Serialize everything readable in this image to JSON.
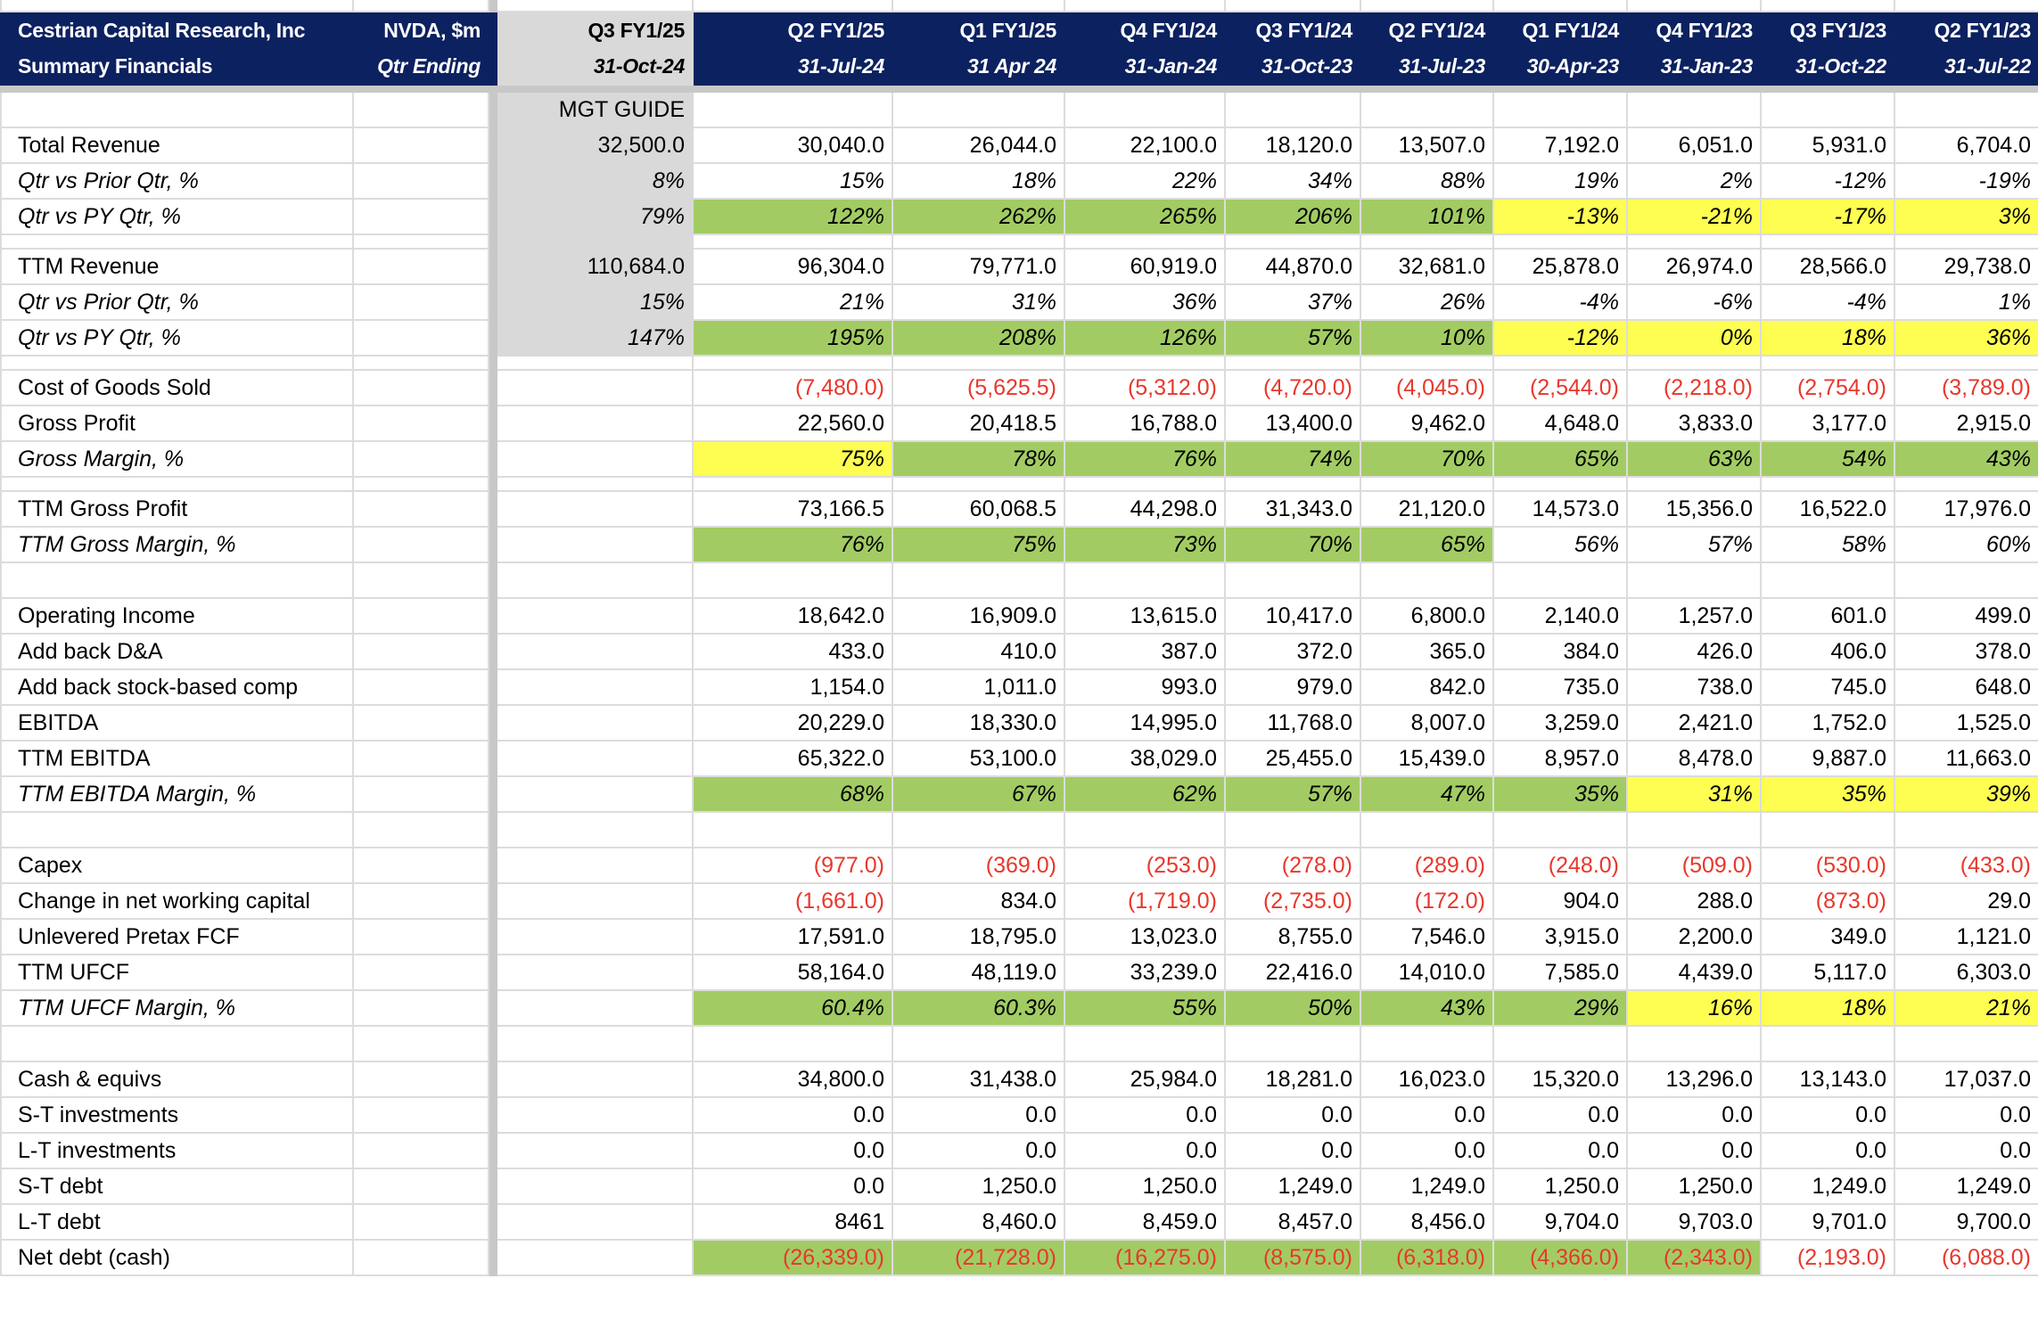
{
  "header": {
    "title_line1": "Cestrian Capital Research, Inc",
    "title_line2": "Summary Financials",
    "ticker_line1": "NVDA, $m",
    "ticker_line2": "Qtr Ending",
    "guide_quarter": "Q3 FY1/25",
    "guide_date": "31-Oct-24",
    "guide_label": "MGT GUIDE",
    "quarters": [
      {
        "q": "Q2 FY1/25",
        "d": "31-Jul-24"
      },
      {
        "q": "Q1 FY1/25",
        "d": "31 Apr 24"
      },
      {
        "q": "Q4 FY1/24",
        "d": "31-Jan-24"
      },
      {
        "q": "Q3 FY1/24",
        "d": "31-Oct-23"
      },
      {
        "q": "Q2 FY1/24",
        "d": "31-Jul-23"
      },
      {
        "q": "Q1 FY1/24",
        "d": "30-Apr-23"
      },
      {
        "q": "Q4 FY1/23",
        "d": "31-Jan-23"
      },
      {
        "q": "Q3 FY1/23",
        "d": "31-Oct-22"
      },
      {
        "q": "Q2 FY1/23",
        "d": "31-Jul-22"
      }
    ]
  },
  "colors": {
    "header_bg": "#0c2160",
    "green": "#a2cc63",
    "yellow": "#fdfd52",
    "negative": "#e8372c",
    "guide_bg": "#d9d9d9"
  },
  "rows": [
    {
      "type": "guide"
    },
    {
      "label": "Total Revenue",
      "guide": "32,500.0",
      "values": [
        "30,040.0",
        "26,044.0",
        "22,100.0",
        "18,120.0",
        "13,507.0",
        "7,192.0",
        "6,051.0",
        "5,931.0",
        "6,704.0"
      ]
    },
    {
      "label": "Qtr vs Prior Qtr, %",
      "italic": true,
      "guide": "8%",
      "values": [
        "15%",
        "18%",
        "22%",
        "34%",
        "88%",
        "19%",
        "2%",
        "-12%",
        "-19%"
      ]
    },
    {
      "label": "Qtr vs PY Qtr, %",
      "italic": true,
      "guide": "79%",
      "fill": "gggggyyyy",
      "values": [
        "122%",
        "262%",
        "265%",
        "206%",
        "101%",
        "-13%",
        "-21%",
        "-17%",
        "3%"
      ]
    },
    {
      "type": "blank-s",
      "gray": true
    },
    {
      "label": "TTM Revenue",
      "guide": "110,684.0",
      "values": [
        "96,304.0",
        "79,771.0",
        "60,919.0",
        "44,870.0",
        "32,681.0",
        "25,878.0",
        "26,974.0",
        "28,566.0",
        "29,738.0"
      ]
    },
    {
      "label": "Qtr vs Prior Qtr, %",
      "italic": true,
      "guide": "15%",
      "values": [
        "21%",
        "31%",
        "36%",
        "37%",
        "26%",
        "-4%",
        "-6%",
        "-4%",
        "1%"
      ]
    },
    {
      "label": "Qtr vs PY Qtr, %",
      "italic": true,
      "guide": "147%",
      "fill": "gggggyyyy",
      "values": [
        "195%",
        "208%",
        "126%",
        "57%",
        "10%",
        "-12%",
        "0%",
        "18%",
        "36%"
      ]
    },
    {
      "type": "blank-s"
    },
    {
      "label": "Cost of Goods Sold",
      "values": [
        "(7,480.0)",
        "(5,625.5)",
        "(5,312.0)",
        "(4,720.0)",
        "(4,045.0)",
        "(2,544.0)",
        "(2,218.0)",
        "(2,754.0)",
        "(3,789.0)"
      ]
    },
    {
      "label": "Gross Profit",
      "values": [
        "22,560.0",
        "20,418.5",
        "16,788.0",
        "13,400.0",
        "9,462.0",
        "4,648.0",
        "3,833.0",
        "3,177.0",
        "2,915.0"
      ]
    },
    {
      "label": "Gross Margin, %",
      "italic": true,
      "fill": "yggggggggy",
      "values": [
        "75%",
        "78%",
        "76%",
        "74%",
        "70%",
        "65%",
        "63%",
        "54%",
        "43%"
      ]
    },
    {
      "type": "blank-s"
    },
    {
      "label": "TTM Gross Profit",
      "values": [
        "73,166.5",
        "60,068.5",
        "44,298.0",
        "31,343.0",
        "21,120.0",
        "14,573.0",
        "15,356.0",
        "16,522.0",
        "17,976.0"
      ]
    },
    {
      "label": "TTM Gross Margin, %",
      "italic": true,
      "fill": "ggggg----",
      "values": [
        "76%",
        "75%",
        "73%",
        "70%",
        "65%",
        "56%",
        "57%",
        "58%",
        "60%"
      ]
    },
    {
      "type": "blank"
    },
    {
      "label": "Operating Income",
      "values": [
        "18,642.0",
        "16,909.0",
        "13,615.0",
        "10,417.0",
        "6,800.0",
        "2,140.0",
        "1,257.0",
        "601.0",
        "499.0"
      ]
    },
    {
      "label": "Add back D&A",
      "values": [
        "433.0",
        "410.0",
        "387.0",
        "372.0",
        "365.0",
        "384.0",
        "426.0",
        "406.0",
        "378.0"
      ]
    },
    {
      "label": "Add back stock-based comp",
      "values": [
        "1,154.0",
        "1,011.0",
        "993.0",
        "979.0",
        "842.0",
        "735.0",
        "738.0",
        "745.0",
        "648.0"
      ]
    },
    {
      "label": "EBITDA",
      "values": [
        "20,229.0",
        "18,330.0",
        "14,995.0",
        "11,768.0",
        "8,007.0",
        "3,259.0",
        "2,421.0",
        "1,752.0",
        "1,525.0"
      ]
    },
    {
      "label": "TTM EBITDA",
      "values": [
        "65,322.0",
        "53,100.0",
        "38,029.0",
        "25,455.0",
        "15,439.0",
        "8,957.0",
        "8,478.0",
        "9,887.0",
        "11,663.0"
      ]
    },
    {
      "label": "TTM EBITDA Margin, %",
      "italic": true,
      "fill": "ggggggyyy",
      "values": [
        "68%",
        "67%",
        "62%",
        "57%",
        "47%",
        "35%",
        "31%",
        "35%",
        "39%"
      ]
    },
    {
      "type": "blank"
    },
    {
      "label": "Capex",
      "values": [
        "(977.0)",
        "(369.0)",
        "(253.0)",
        "(278.0)",
        "(289.0)",
        "(248.0)",
        "(509.0)",
        "(530.0)",
        "(433.0)"
      ]
    },
    {
      "label": "Change in net working capital",
      "values": [
        "(1,661.0)",
        "834.0",
        "(1,719.0)",
        "(2,735.0)",
        "(172.0)",
        "904.0",
        "288.0",
        "(873.0)",
        "29.0"
      ]
    },
    {
      "label": "Unlevered Pretax FCF",
      "values": [
        "17,591.0",
        "18,795.0",
        "13,023.0",
        "8,755.0",
        "7,546.0",
        "3,915.0",
        "2,200.0",
        "349.0",
        "1,121.0"
      ]
    },
    {
      "label": "TTM UFCF",
      "values": [
        "58,164.0",
        "48,119.0",
        "33,239.0",
        "22,416.0",
        "14,010.0",
        "7,585.0",
        "4,439.0",
        "5,117.0",
        "6,303.0"
      ]
    },
    {
      "label": "TTM UFCF Margin, %",
      "italic": true,
      "fill": "ggggggyyy",
      "values": [
        "60.4%",
        "60.3%",
        "55%",
        "50%",
        "43%",
        "29%",
        "16%",
        "18%",
        "21%"
      ]
    },
    {
      "type": "blank"
    },
    {
      "label": "Cash & equivs",
      "values": [
        "34,800.0",
        "31,438.0",
        "25,984.0",
        "18,281.0",
        "16,023.0",
        "15,320.0",
        "13,296.0",
        "13,143.0",
        "17,037.0"
      ]
    },
    {
      "label": "S-T investments",
      "values": [
        "0.0",
        "0.0",
        "0.0",
        "0.0",
        "0.0",
        "0.0",
        "0.0",
        "0.0",
        "0.0"
      ]
    },
    {
      "label": "L-T investments",
      "values": [
        "0.0",
        "0.0",
        "0.0",
        "0.0",
        "0.0",
        "0.0",
        "0.0",
        "0.0",
        "0.0"
      ]
    },
    {
      "label": "S-T debt",
      "values": [
        "0.0",
        "1,250.0",
        "1,250.0",
        "1,249.0",
        "1,249.0",
        "1,250.0",
        "1,250.0",
        "1,249.0",
        "1,249.0"
      ]
    },
    {
      "label": "L-T debt",
      "values": [
        "8461",
        "8,460.0",
        "8,459.0",
        "8,457.0",
        "8,456.0",
        "9,704.0",
        "9,703.0",
        "9,701.0",
        "9,700.0"
      ]
    },
    {
      "label": "Net debt (cash)",
      "fill": "ggggggg--",
      "values": [
        "(26,339.0)",
        "(21,728.0)",
        "(16,275.0)",
        "(8,575.0)",
        "(6,318.0)",
        "(4,366.0)",
        "(2,343.0)",
        "(2,193.0)",
        "(6,088.0)"
      ]
    }
  ]
}
